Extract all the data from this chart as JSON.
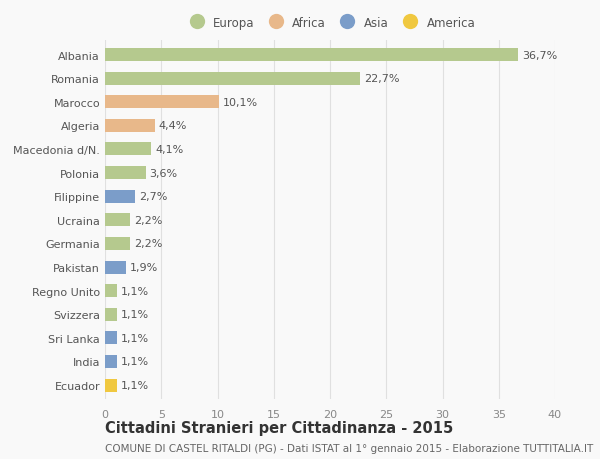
{
  "countries": [
    "Albania",
    "Romania",
    "Marocco",
    "Algeria",
    "Macedonia d/N.",
    "Polonia",
    "Filippine",
    "Ucraina",
    "Germania",
    "Pakistan",
    "Regno Unito",
    "Svizzera",
    "Sri Lanka",
    "India",
    "Ecuador"
  ],
  "values": [
    36.7,
    22.7,
    10.1,
    4.4,
    4.1,
    3.6,
    2.7,
    2.2,
    2.2,
    1.9,
    1.1,
    1.1,
    1.1,
    1.1,
    1.1
  ],
  "labels": [
    "36,7%",
    "22,7%",
    "10,1%",
    "4,4%",
    "4,1%",
    "3,6%",
    "2,7%",
    "2,2%",
    "2,2%",
    "1,9%",
    "1,1%",
    "1,1%",
    "1,1%",
    "1,1%",
    "1,1%"
  ],
  "continents": [
    "Europa",
    "Europa",
    "Africa",
    "Africa",
    "Europa",
    "Europa",
    "Asia",
    "Europa",
    "Europa",
    "Asia",
    "Europa",
    "Europa",
    "Asia",
    "Asia",
    "America"
  ],
  "colors": {
    "Europa": "#b5c98e",
    "Africa": "#e8b88a",
    "Asia": "#7b9dc9",
    "America": "#f0c840"
  },
  "legend_order": [
    "Europa",
    "Africa",
    "Asia",
    "America"
  ],
  "title": "Cittadini Stranieri per Cittadinanza - 2015",
  "subtitle": "COMUNE DI CASTEL RITALDI (PG) - Dati ISTAT al 1° gennaio 2015 - Elaborazione TUTTITALIA.IT",
  "xlim": [
    0,
    40
  ],
  "xticks": [
    0,
    5,
    10,
    15,
    20,
    25,
    30,
    35,
    40
  ],
  "background_color": "#f9f9f9",
  "grid_color": "#e0e0e0",
  "bar_height": 0.55,
  "title_fontsize": 10.5,
  "subtitle_fontsize": 7.5,
  "tick_fontsize": 8,
  "label_fontsize": 8
}
